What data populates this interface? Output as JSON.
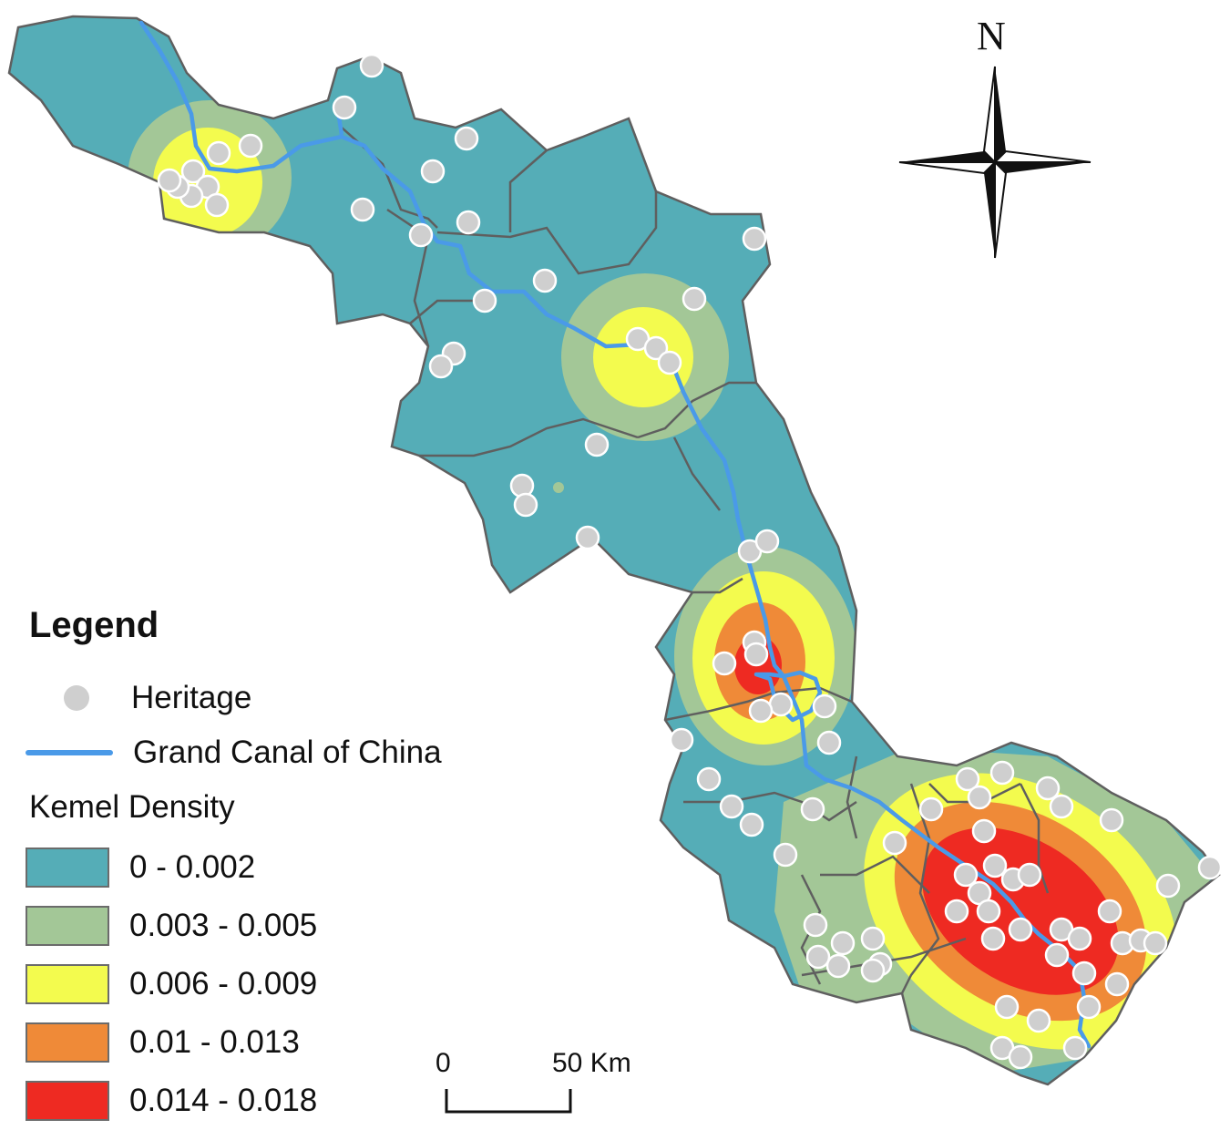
{
  "legend": {
    "title": "Legend",
    "heritage_label": "Heritage",
    "canal_label": "Grand Canal of China",
    "density_title": "Kemel Density",
    "classes": [
      {
        "label": "0 - 0.002",
        "color": "#55adb7"
      },
      {
        "label": "0.003 - 0.005",
        "color": "#a3c797"
      },
      {
        "label": "0.006 - 0.009",
        "color": "#f3fb4e"
      },
      {
        "label": "0.01 - 0.013",
        "color": "#ef8a38"
      },
      {
        "label": "0.014 - 0.018",
        "color": "#ee2a22"
      }
    ]
  },
  "north_arrow": {
    "label": "N"
  },
  "scale_bar": {
    "start_label": "0",
    "end_label": "50 Km"
  },
  "colors": {
    "canal": "#4a9ae8",
    "heritage_fill": "#cfcfcf",
    "heritage_stroke": "#ffffff",
    "boundary": "#5f5f5f",
    "base": "#55adb7"
  },
  "icons": [
    "compass-rose-icon",
    "heritage-dot-icon",
    "canal-line-icon"
  ]
}
